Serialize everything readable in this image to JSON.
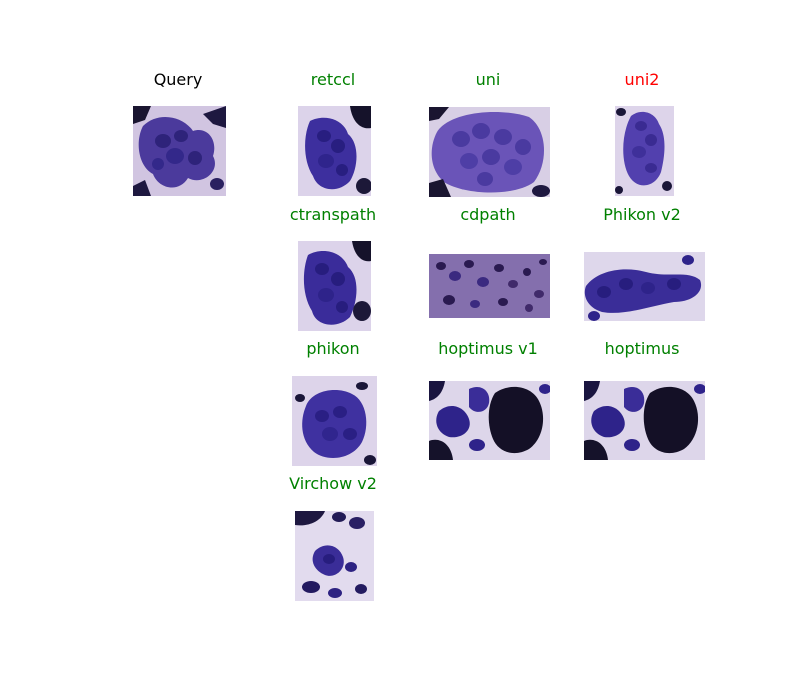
{
  "colors": {
    "query_title": "#000000",
    "match": "#008000",
    "mismatch": "#ff0000"
  },
  "panels": {
    "query": {
      "title": "Query",
      "status": "query"
    },
    "retccl": {
      "title": "retccl",
      "status": "match"
    },
    "uni": {
      "title": "uni",
      "status": "match"
    },
    "uni2": {
      "title": "uni2",
      "status": "mismatch"
    },
    "ctranspath": {
      "title": "ctranspath",
      "status": "match"
    },
    "cdpath": {
      "title": "cdpath",
      "status": "match"
    },
    "phikon_v2": {
      "title": "Phikon v2",
      "status": "match"
    },
    "phikon": {
      "title": "phikon",
      "status": "match"
    },
    "hoptimus_v1": {
      "title": "hoptimus v1",
      "status": "match"
    },
    "hoptimus": {
      "title": "hoptimus",
      "status": "match"
    },
    "virchow_v2": {
      "title": "Virchow v2",
      "status": "match"
    }
  }
}
